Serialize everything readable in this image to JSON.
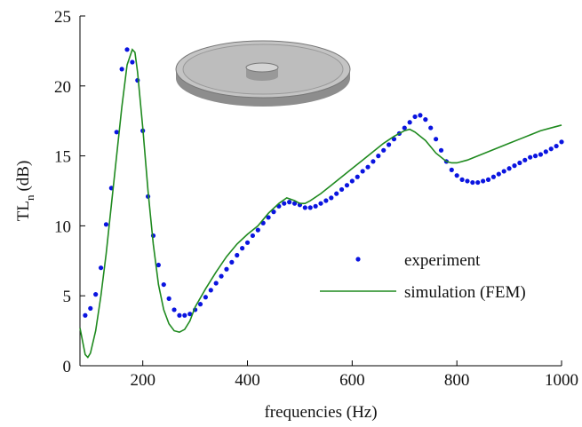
{
  "chart_data": {
    "type": "line",
    "x_label": "frequencies (Hz)",
    "y_label": {
      "main": "TL",
      "sub": "n",
      "unit": "(dB)"
    },
    "xlim": [
      80,
      1000
    ],
    "xticks": [
      200,
      400,
      600,
      800,
      1000
    ],
    "ylim": [
      0,
      25
    ],
    "yticks": [
      0,
      5,
      10,
      15,
      20,
      25
    ],
    "legend": "right",
    "series": [
      {
        "name": "experiment",
        "style": "markers",
        "color": "#0a14e0",
        "x": [
          90,
          100,
          110,
          120,
          130,
          140,
          150,
          160,
          170,
          180,
          190,
          200,
          210,
          220,
          230,
          240,
          250,
          260,
          270,
          280,
          290,
          300,
          310,
          320,
          330,
          340,
          350,
          360,
          370,
          380,
          390,
          400,
          410,
          420,
          430,
          440,
          450,
          460,
          470,
          480,
          490,
          500,
          510,
          520,
          530,
          540,
          550,
          560,
          570,
          580,
          590,
          600,
          610,
          620,
          630,
          640,
          650,
          660,
          670,
          680,
          690,
          700,
          710,
          720,
          730,
          740,
          750,
          760,
          770,
          780,
          790,
          800,
          810,
          820,
          830,
          840,
          850,
          860,
          870,
          880,
          890,
          900,
          910,
          920,
          930,
          940,
          950,
          960,
          970,
          980,
          990,
          1000
        ],
        "values": [
          3.6,
          4.1,
          5.1,
          7.0,
          10.1,
          12.7,
          16.7,
          21.2,
          22.6,
          21.7,
          20.4,
          16.8,
          12.1,
          9.3,
          7.2,
          5.8,
          4.8,
          4.0,
          3.6,
          3.6,
          3.7,
          4.0,
          4.4,
          4.9,
          5.4,
          5.9,
          6.4,
          6.9,
          7.4,
          7.9,
          8.4,
          8.8,
          9.3,
          9.7,
          10.2,
          10.6,
          11.0,
          11.4,
          11.6,
          11.7,
          11.6,
          11.5,
          11.3,
          11.3,
          11.4,
          11.6,
          11.8,
          12.0,
          12.3,
          12.6,
          12.9,
          13.2,
          13.5,
          13.9,
          14.2,
          14.6,
          15.0,
          15.4,
          15.8,
          16.2,
          16.6,
          17.0,
          17.4,
          17.8,
          17.9,
          17.6,
          17.0,
          16.2,
          15.4,
          14.6,
          14.0,
          13.6,
          13.3,
          13.2,
          13.1,
          13.1,
          13.2,
          13.3,
          13.5,
          13.7,
          13.9,
          14.1,
          14.3,
          14.5,
          14.7,
          14.9,
          15.0,
          15.1,
          15.3,
          15.5,
          15.7,
          16.0
        ]
      },
      {
        "name": "simulation (FEM)",
        "style": "line",
        "color": "#1f8a1f",
        "x": [
          80,
          90,
          95,
          100,
          110,
          120,
          130,
          140,
          150,
          160,
          170,
          180,
          185,
          190,
          200,
          210,
          220,
          230,
          240,
          250,
          260,
          270,
          280,
          290,
          300,
          320,
          340,
          360,
          380,
          400,
          420,
          440,
          460,
          475,
          490,
          500,
          510,
          520,
          540,
          560,
          580,
          600,
          620,
          640,
          660,
          680,
          700,
          710,
          720,
          740,
          760,
          780,
          790,
          800,
          820,
          840,
          860,
          880,
          900,
          920,
          940,
          960,
          980,
          1000
        ],
        "values": [
          2.7,
          0.8,
          0.6,
          0.9,
          2.5,
          5.0,
          8.0,
          11.5,
          15.0,
          18.5,
          21.5,
          22.6,
          22.4,
          21.0,
          17.0,
          12.5,
          8.7,
          5.8,
          4.0,
          3.0,
          2.5,
          2.4,
          2.6,
          3.2,
          4.2,
          5.5,
          6.7,
          7.8,
          8.7,
          9.4,
          10.0,
          10.9,
          11.6,
          12.0,
          11.8,
          11.6,
          11.6,
          11.8,
          12.3,
          12.9,
          13.5,
          14.1,
          14.7,
          15.3,
          15.9,
          16.4,
          16.8,
          16.9,
          16.7,
          16.1,
          15.2,
          14.6,
          14.5,
          14.5,
          14.7,
          15.0,
          15.3,
          15.6,
          15.9,
          16.2,
          16.5,
          16.8,
          17.0,
          17.2
        ]
      }
    ]
  }
}
